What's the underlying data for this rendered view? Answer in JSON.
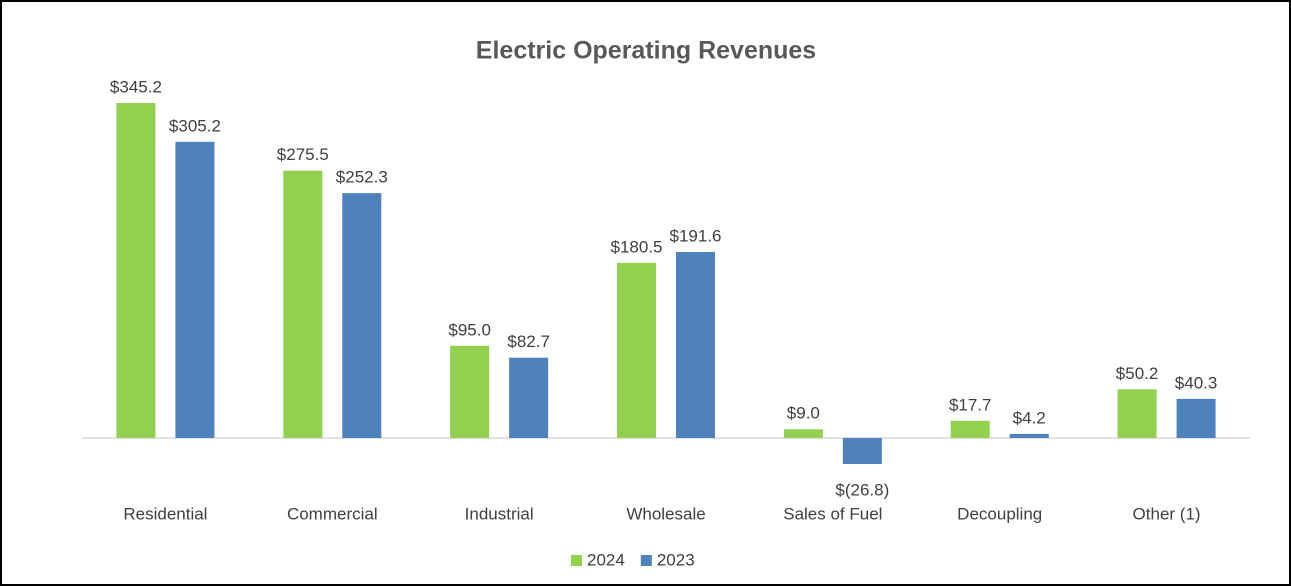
{
  "chart_data": {
    "type": "bar",
    "title": "Electric Operating Revenues",
    "categories": [
      "Residential",
      "Commercial",
      "Industrial",
      "Wholesale",
      "Sales of Fuel",
      "Decoupling",
      "Other (1)"
    ],
    "series": [
      {
        "name": "2024",
        "color": "#92d050",
        "values": [
          345.2,
          275.5,
          95.0,
          180.5,
          9.0,
          17.7,
          50.2
        ],
        "value_labels": [
          "$345.2",
          "$275.5",
          "$95.0",
          "$180.5",
          "$9.0",
          "$17.7",
          "$50.2"
        ]
      },
      {
        "name": "2023",
        "color": "#4f81bd",
        "values": [
          305.2,
          252.3,
          82.7,
          191.6,
          -26.8,
          4.2,
          40.3
        ],
        "value_labels": [
          "$305.2",
          "$252.3",
          "$82.7",
          "$191.6",
          "$(26.8)",
          "$4.2",
          "$40.3"
        ]
      }
    ],
    "legend": "bottom"
  }
}
